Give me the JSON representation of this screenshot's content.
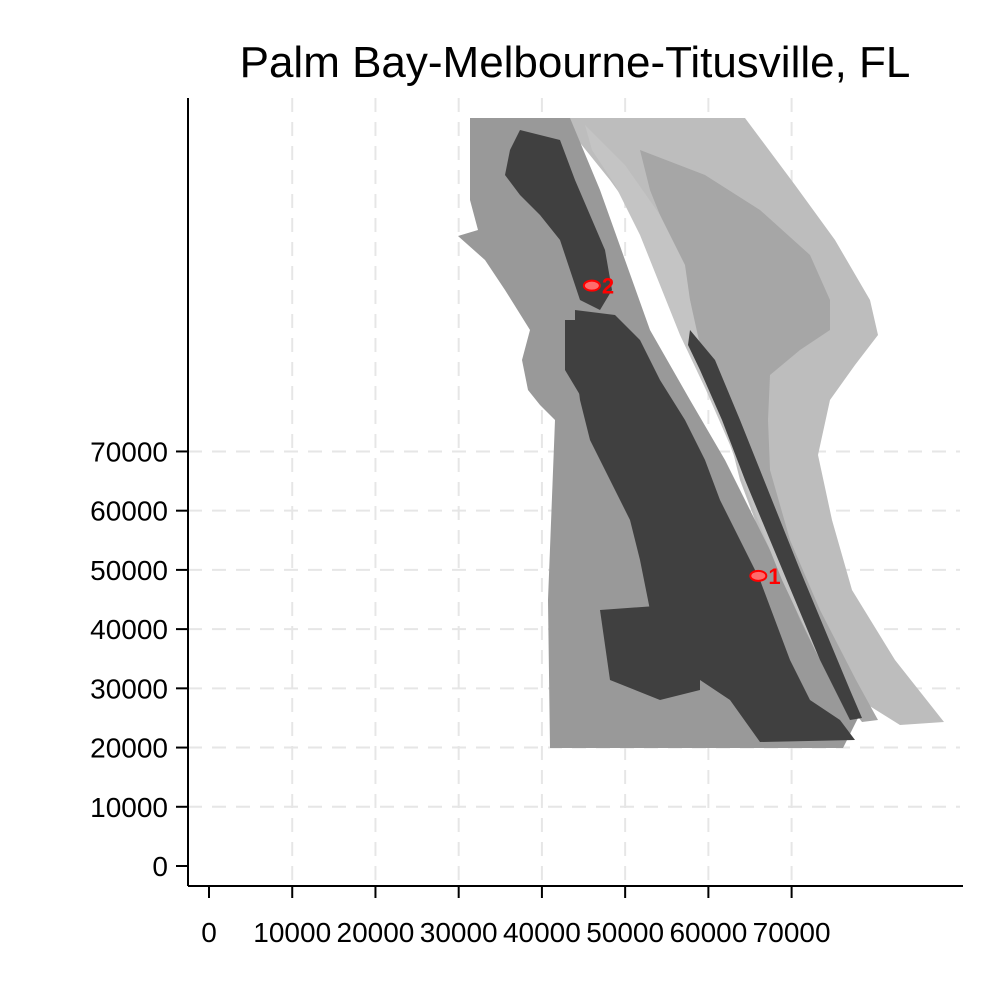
{
  "title": "Palm Bay-Melbourne-Titusville, FL",
  "axes": {
    "x_ticks": [
      "0",
      "10000",
      "20000",
      "30000",
      "40000",
      "50000",
      "60000",
      "70000"
    ],
    "y_ticks": [
      "0",
      "10000",
      "20000",
      "30000",
      "40000",
      "50000",
      "60000",
      "70000"
    ],
    "x_tick_values": [
      0,
      10000,
      20000,
      30000,
      40000,
      50000,
      60000,
      70000
    ],
    "y_tick_values": [
      0,
      10000,
      20000,
      30000,
      40000,
      50000,
      60000,
      70000
    ],
    "gridlines": "dashed"
  },
  "markers": [
    {
      "label": "1",
      "x": 66000,
      "y": 49000
    },
    {
      "label": "2",
      "x": 46000,
      "y": 98000
    }
  ],
  "colors": {
    "urban": "#404040",
    "land": "#999999",
    "water": "#bdbdbd",
    "marker": "#ff0000",
    "grid": "#e6e6e6"
  }
}
